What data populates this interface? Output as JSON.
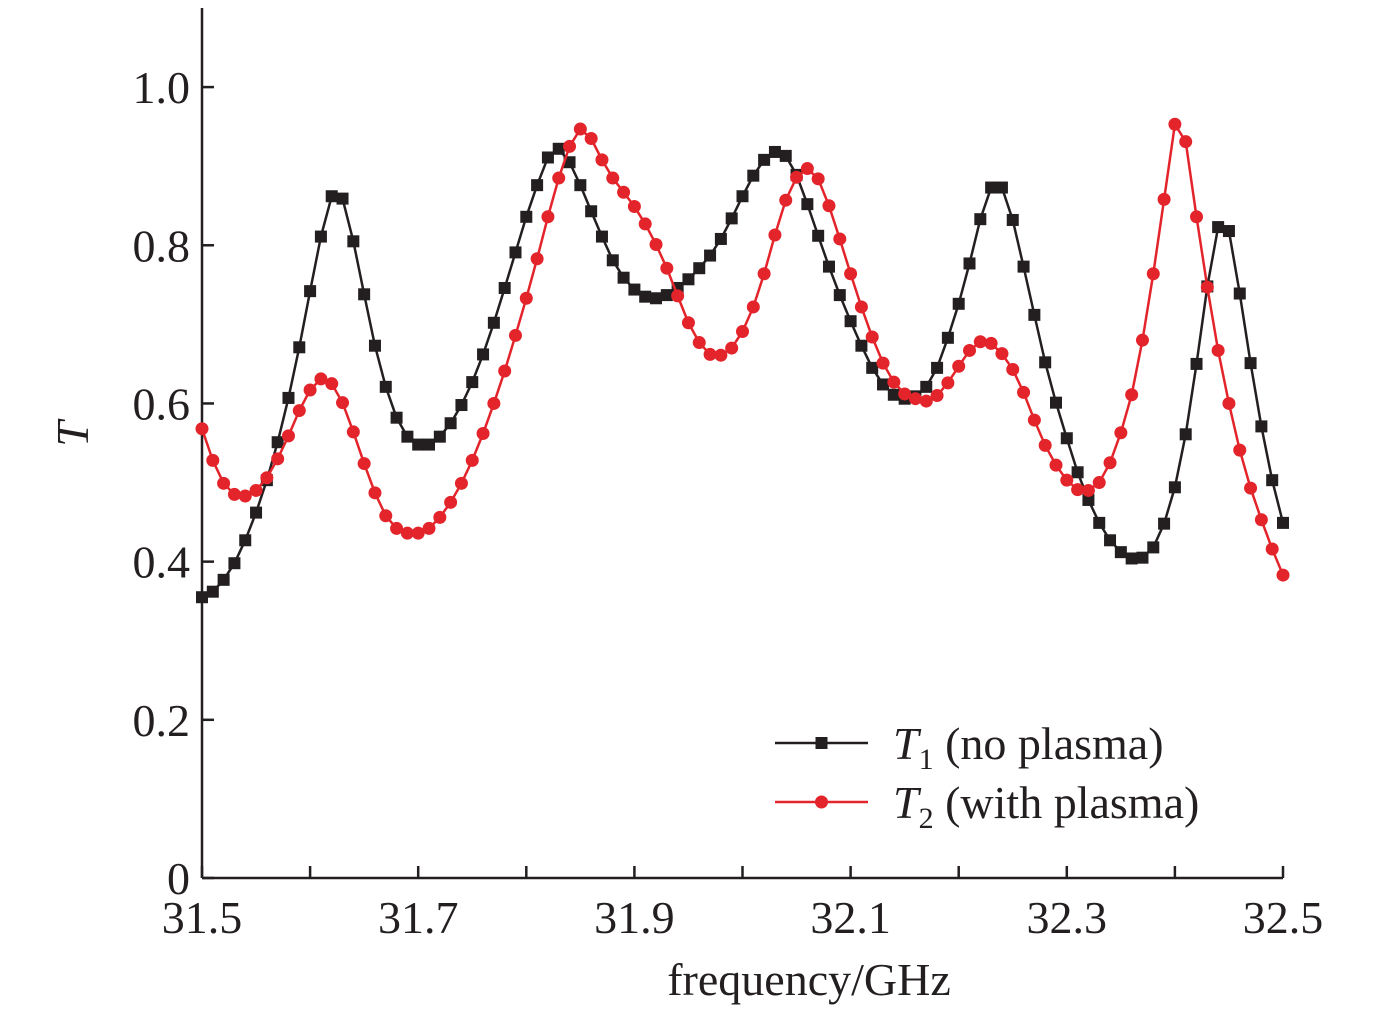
{
  "chart_data": {
    "type": "line",
    "xlabel": "frequency/GHz",
    "ylabel": "T",
    "xlim": [
      31.5,
      32.5
    ],
    "ylim": [
      0,
      1.1
    ],
    "x_ticks": [
      31.5,
      31.7,
      31.9,
      32.1,
      32.3,
      32.5
    ],
    "x_tick_labels": [
      "31.5",
      "31.7",
      "31.9",
      "32.1",
      "32.3",
      "32.5"
    ],
    "x_minor_ticks": [
      31.6,
      31.8,
      32.0,
      32.2,
      32.4
    ],
    "y_ticks": [
      0,
      0.2,
      0.4,
      0.6,
      0.8,
      1.0
    ],
    "y_tick_labels": [
      "0",
      "0.2",
      "0.4",
      "0.6",
      "0.8",
      "1.0"
    ],
    "grid": false,
    "legend_position": "bottom-right",
    "series": [
      {
        "name": "T1 (no plasma)",
        "legend_symbol": "T",
        "legend_subscript": "1",
        "legend_suffix": " (no plasma)",
        "color": "#231f20",
        "marker": "square",
        "points": [
          [
            31.5,
            0.355
          ],
          [
            31.51,
            0.362
          ],
          [
            31.52,
            0.377
          ],
          [
            31.53,
            0.398
          ],
          [
            31.54,
            0.427
          ],
          [
            31.55,
            0.462
          ],
          [
            31.56,
            0.503
          ],
          [
            31.57,
            0.551
          ],
          [
            31.58,
            0.607
          ],
          [
            31.59,
            0.671
          ],
          [
            31.6,
            0.742
          ],
          [
            31.61,
            0.811
          ],
          [
            31.62,
            0.862
          ],
          [
            31.63,
            0.859
          ],
          [
            31.64,
            0.805
          ],
          [
            31.65,
            0.738
          ],
          [
            31.66,
            0.673
          ],
          [
            31.67,
            0.621
          ],
          [
            31.68,
            0.582
          ],
          [
            31.69,
            0.558
          ],
          [
            31.7,
            0.548
          ],
          [
            31.71,
            0.548
          ],
          [
            31.72,
            0.558
          ],
          [
            31.73,
            0.575
          ],
          [
            31.74,
            0.598
          ],
          [
            31.75,
            0.627
          ],
          [
            31.76,
            0.662
          ],
          [
            31.77,
            0.702
          ],
          [
            31.78,
            0.746
          ],
          [
            31.79,
            0.791
          ],
          [
            31.8,
            0.836
          ],
          [
            31.81,
            0.876
          ],
          [
            31.82,
            0.911
          ],
          [
            31.83,
            0.922
          ],
          [
            31.84,
            0.905
          ],
          [
            31.85,
            0.876
          ],
          [
            31.86,
            0.843
          ],
          [
            31.87,
            0.811
          ],
          [
            31.88,
            0.781
          ],
          [
            31.89,
            0.759
          ],
          [
            31.9,
            0.744
          ],
          [
            31.91,
            0.735
          ],
          [
            31.92,
            0.733
          ],
          [
            31.93,
            0.737
          ],
          [
            31.94,
            0.746
          ],
          [
            31.95,
            0.757
          ],
          [
            31.96,
            0.771
          ],
          [
            31.97,
            0.787
          ],
          [
            31.98,
            0.808
          ],
          [
            31.99,
            0.834
          ],
          [
            32.0,
            0.862
          ],
          [
            32.01,
            0.888
          ],
          [
            32.02,
            0.908
          ],
          [
            32.03,
            0.918
          ],
          [
            32.04,
            0.913
          ],
          [
            32.05,
            0.889
          ],
          [
            32.06,
            0.852
          ],
          [
            32.07,
            0.812
          ],
          [
            32.08,
            0.773
          ],
          [
            32.09,
            0.737
          ],
          [
            32.1,
            0.704
          ],
          [
            32.11,
            0.673
          ],
          [
            32.12,
            0.645
          ],
          [
            32.13,
            0.624
          ],
          [
            32.14,
            0.611
          ],
          [
            32.15,
            0.606
          ],
          [
            32.16,
            0.609
          ],
          [
            32.17,
            0.621
          ],
          [
            32.18,
            0.645
          ],
          [
            32.19,
            0.683
          ],
          [
            32.2,
            0.726
          ],
          [
            32.21,
            0.777
          ],
          [
            32.22,
            0.833
          ],
          [
            32.23,
            0.873
          ],
          [
            32.24,
            0.873
          ],
          [
            32.25,
            0.832
          ],
          [
            32.26,
            0.773
          ],
          [
            32.27,
            0.712
          ],
          [
            32.28,
            0.652
          ],
          [
            32.29,
            0.601
          ],
          [
            32.3,
            0.556
          ],
          [
            32.31,
            0.513
          ],
          [
            32.32,
            0.478
          ],
          [
            32.33,
            0.449
          ],
          [
            32.34,
            0.427
          ],
          [
            32.35,
            0.412
          ],
          [
            32.36,
            0.404
          ],
          [
            32.37,
            0.405
          ],
          [
            32.38,
            0.418
          ],
          [
            32.39,
            0.448
          ],
          [
            32.4,
            0.494
          ],
          [
            32.41,
            0.561
          ],
          [
            32.42,
            0.65
          ],
          [
            32.43,
            0.748
          ],
          [
            32.44,
            0.823
          ],
          [
            32.45,
            0.818
          ],
          [
            32.46,
            0.739
          ],
          [
            32.47,
            0.651
          ],
          [
            32.48,
            0.571
          ],
          [
            32.49,
            0.503
          ],
          [
            32.5,
            0.449
          ]
        ]
      },
      {
        "name": "T2 (with plasma)",
        "legend_symbol": "T",
        "legend_subscript": "2",
        "legend_suffix": " (with plasma)",
        "color": "#e3242b",
        "marker": "circle",
        "points": [
          [
            31.5,
            0.568
          ],
          [
            31.51,
            0.528
          ],
          [
            31.52,
            0.499
          ],
          [
            31.53,
            0.485
          ],
          [
            31.54,
            0.483
          ],
          [
            31.55,
            0.49
          ],
          [
            31.56,
            0.506
          ],
          [
            31.57,
            0.53
          ],
          [
            31.58,
            0.559
          ],
          [
            31.59,
            0.591
          ],
          [
            31.6,
            0.617
          ],
          [
            31.61,
            0.631
          ],
          [
            31.62,
            0.625
          ],
          [
            31.63,
            0.601
          ],
          [
            31.64,
            0.564
          ],
          [
            31.65,
            0.524
          ],
          [
            31.66,
            0.487
          ],
          [
            31.67,
            0.458
          ],
          [
            31.68,
            0.442
          ],
          [
            31.69,
            0.436
          ],
          [
            31.7,
            0.436
          ],
          [
            31.71,
            0.442
          ],
          [
            31.72,
            0.456
          ],
          [
            31.73,
            0.475
          ],
          [
            31.74,
            0.499
          ],
          [
            31.75,
            0.528
          ],
          [
            31.76,
            0.562
          ],
          [
            31.77,
            0.6
          ],
          [
            31.78,
            0.641
          ],
          [
            31.79,
            0.686
          ],
          [
            31.8,
            0.733
          ],
          [
            31.81,
            0.783
          ],
          [
            31.82,
            0.836
          ],
          [
            31.83,
            0.885
          ],
          [
            31.84,
            0.925
          ],
          [
            31.85,
            0.947
          ],
          [
            31.86,
            0.935
          ],
          [
            31.87,
            0.908
          ],
          [
            31.88,
            0.885
          ],
          [
            31.89,
            0.867
          ],
          [
            31.9,
            0.849
          ],
          [
            31.91,
            0.827
          ],
          [
            31.92,
            0.801
          ],
          [
            31.93,
            0.771
          ],
          [
            31.94,
            0.736
          ],
          [
            31.95,
            0.702
          ],
          [
            31.96,
            0.677
          ],
          [
            31.97,
            0.662
          ],
          [
            31.98,
            0.661
          ],
          [
            31.99,
            0.67
          ],
          [
            32.0,
            0.691
          ],
          [
            32.01,
            0.722
          ],
          [
            32.02,
            0.764
          ],
          [
            32.03,
            0.813
          ],
          [
            32.04,
            0.857
          ],
          [
            32.05,
            0.886
          ],
          [
            32.06,
            0.897
          ],
          [
            32.07,
            0.884
          ],
          [
            32.08,
            0.85
          ],
          [
            32.09,
            0.808
          ],
          [
            32.1,
            0.764
          ],
          [
            32.11,
            0.722
          ],
          [
            32.12,
            0.684
          ],
          [
            32.13,
            0.651
          ],
          [
            32.14,
            0.627
          ],
          [
            32.15,
            0.612
          ],
          [
            32.16,
            0.606
          ],
          [
            32.17,
            0.603
          ],
          [
            32.18,
            0.61
          ],
          [
            32.19,
            0.626
          ],
          [
            32.2,
            0.647
          ],
          [
            32.21,
            0.667
          ],
          [
            32.22,
            0.678
          ],
          [
            32.23,
            0.676
          ],
          [
            32.24,
            0.663
          ],
          [
            32.25,
            0.643
          ],
          [
            32.26,
            0.614
          ],
          [
            32.27,
            0.579
          ],
          [
            32.28,
            0.547
          ],
          [
            32.29,
            0.522
          ],
          [
            32.3,
            0.503
          ],
          [
            32.31,
            0.491
          ],
          [
            32.32,
            0.49
          ],
          [
            32.33,
            0.5
          ],
          [
            32.34,
            0.525
          ],
          [
            32.35,
            0.563
          ],
          [
            32.36,
            0.611
          ],
          [
            32.37,
            0.68
          ],
          [
            32.38,
            0.764
          ],
          [
            32.39,
            0.858
          ],
          [
            32.4,
            0.953
          ],
          [
            32.41,
            0.931
          ],
          [
            32.42,
            0.836
          ],
          [
            32.43,
            0.747
          ],
          [
            32.44,
            0.667
          ],
          [
            32.45,
            0.6
          ],
          [
            32.46,
            0.541
          ],
          [
            32.47,
            0.493
          ],
          [
            32.48,
            0.453
          ],
          [
            32.49,
            0.416
          ],
          [
            32.5,
            0.383
          ]
        ]
      }
    ]
  }
}
